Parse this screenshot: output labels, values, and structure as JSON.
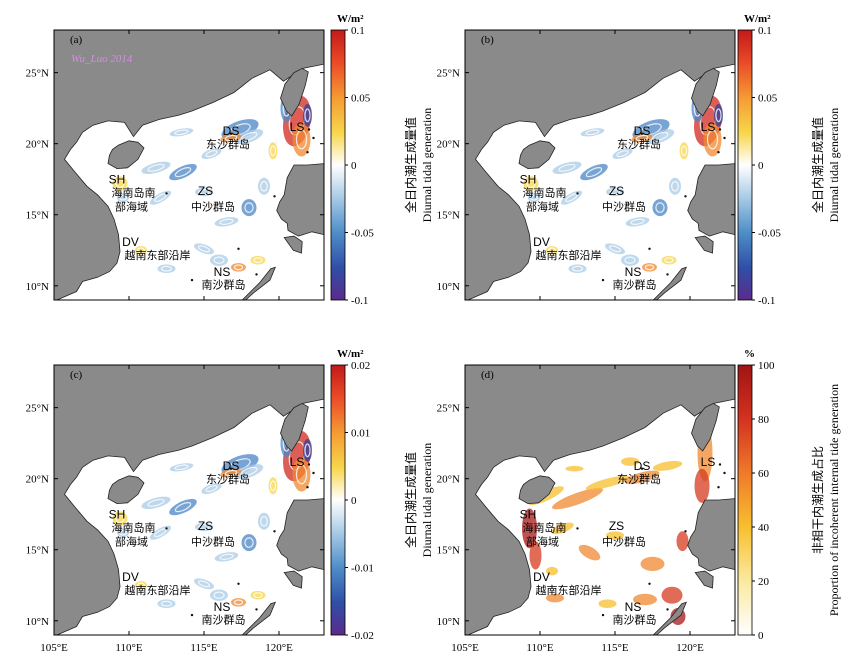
{
  "chart_data": [
    {
      "type": "heatmap",
      "panel_label": "(a)",
      "watermark": "Wu_Luo 2014",
      "unit": "W/m²",
      "colorbar_label_cn": "全日内潮生成量值",
      "colorbar_label_en": "Diurnal tidal generation",
      "colorscale": "diverging",
      "clim": [
        -0.1,
        0.1
      ],
      "colorbar_ticks": [
        "0.1",
        "0.05",
        "0",
        "-0.05",
        "-0.1"
      ],
      "x_ticks": [],
      "y_ticks": [
        "25°N",
        "20°N",
        "15°N",
        "10°N"
      ],
      "regions": [
        {
          "code": "DS",
          "name": "东沙群岛"
        },
        {
          "code": "LS",
          "name": ""
        },
        {
          "code": "SH",
          "name": "海南岛南部海域"
        },
        {
          "code": "ZS",
          "name": "中沙群岛"
        },
        {
          "code": "DV",
          "name": "越南东部沿岸"
        },
        {
          "code": "NS",
          "name": "南沙群岛"
        }
      ]
    },
    {
      "type": "heatmap",
      "panel_label": "(b)",
      "unit": "W/m²",
      "colorbar_label_cn": "全日内潮生成量值",
      "colorbar_label_en": "Diurnal tidal generation",
      "colorscale": "diverging",
      "clim": [
        -0.1,
        0.1
      ],
      "colorbar_ticks": [
        "0.1",
        "0.05",
        "0",
        "-0.05",
        "-0.1"
      ],
      "x_ticks": [],
      "y_ticks": [
        "25°N",
        "20°N",
        "15°N",
        "10°N"
      ],
      "regions": [
        {
          "code": "DS",
          "name": "东沙群岛"
        },
        {
          "code": "LS",
          "name": ""
        },
        {
          "code": "SH",
          "name": "海南岛南部海域"
        },
        {
          "code": "ZS",
          "name": "中沙群岛"
        },
        {
          "code": "DV",
          "name": "越南东部沿岸"
        },
        {
          "code": "NS",
          "name": "南沙群岛"
        }
      ]
    },
    {
      "type": "heatmap",
      "panel_label": "(c)",
      "unit": "W/m²",
      "colorbar_label_cn": "全日内潮生成量值",
      "colorbar_label_en": "Diurnal tidal generation",
      "colorscale": "diverging",
      "clim": [
        -0.02,
        0.02
      ],
      "colorbar_ticks": [
        "0.02",
        "0.01",
        "0",
        "-0.01",
        "-0.02"
      ],
      "x_ticks": [
        "105°E",
        "110°E",
        "115°E",
        "120°E"
      ],
      "y_ticks": [
        "25°N",
        "20°N",
        "15°N",
        "10°N"
      ],
      "regions": [
        {
          "code": "DS",
          "name": "东沙群岛"
        },
        {
          "code": "LS",
          "name": ""
        },
        {
          "code": "SH",
          "name": "海南岛南部海域"
        },
        {
          "code": "ZS",
          "name": "中沙群岛"
        },
        {
          "code": "DV",
          "name": "越南东部沿岸"
        },
        {
          "code": "NS",
          "name": "南沙群岛"
        }
      ]
    },
    {
      "type": "heatmap",
      "panel_label": "(d)",
      "unit": "%",
      "colorbar_label_cn": "非相干内潮生成占比",
      "colorbar_label_en": "Proportion of incoherent internal tide generation",
      "colorscale": "sequential",
      "clim": [
        0,
        100
      ],
      "colorbar_ticks": [
        "100",
        "80",
        "60",
        "40",
        "20",
        "0"
      ],
      "x_ticks": [
        "105°E",
        "110°E",
        "115°E",
        "120°E"
      ],
      "y_ticks": [
        "25°N",
        "20°N",
        "15°N",
        "10°N"
      ],
      "regions": [
        {
          "code": "DS",
          "name": "东沙群岛"
        },
        {
          "code": "LS",
          "name": ""
        },
        {
          "code": "SH",
          "name": "海南岛南部海域"
        },
        {
          "code": "ZS",
          "name": "中沙群岛"
        },
        {
          "code": "DV",
          "name": "越南东部沿岸"
        },
        {
          "code": "NS",
          "name": "南沙群岛"
        }
      ]
    }
  ]
}
